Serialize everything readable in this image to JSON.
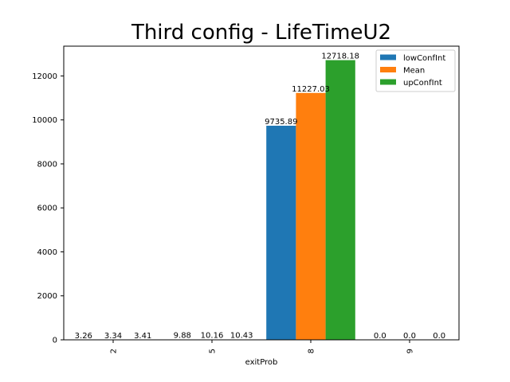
{
  "chart_data": {
    "type": "bar",
    "title": "Third config - LifeTimeU2",
    "xlabel": "exitProb",
    "ylabel": "",
    "categories": [
      "2",
      "5",
      "8",
      "9"
    ],
    "series": [
      {
        "name": "lowConfInt",
        "color": "#1f77b4",
        "values": [
          3.26,
          9.88,
          9735.89,
          0.0
        ],
        "labels": [
          "3.26",
          "9.88",
          "9735.89",
          "0.0"
        ]
      },
      {
        "name": "Mean",
        "color": "#ff7f0e",
        "values": [
          3.34,
          10.16,
          11227.03,
          0.0
        ],
        "labels": [
          "3.34",
          "10.16",
          "11227.03",
          "0.0"
        ]
      },
      {
        "name": "upConfInt",
        "color": "#2ca02c",
        "values": [
          3.41,
          10.43,
          12718.18,
          0.0
        ],
        "labels": [
          "3.41",
          "10.43",
          "12718.18",
          "0.0"
        ]
      }
    ],
    "ylim": [
      0,
      13354
    ],
    "yticks": [
      0,
      2000,
      4000,
      6000,
      8000,
      10000,
      12000
    ],
    "grid": false,
    "legend": "top-right"
  }
}
